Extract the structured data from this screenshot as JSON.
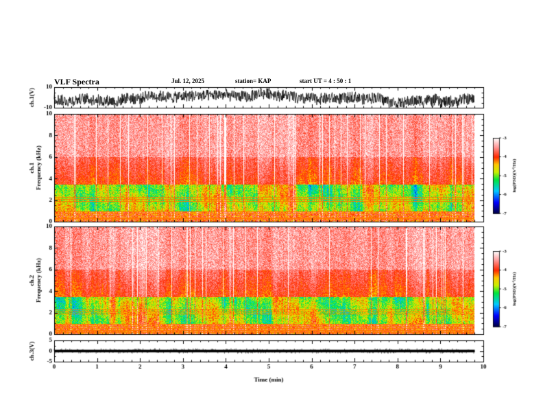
{
  "header": {
    "title": "VLF Spectra",
    "date": "Jul. 12, 2025",
    "station": "station= KAP",
    "start_ut": "start UT =  4 : 50 : 1"
  },
  "chart_data": [
    {
      "type": "line",
      "name": "ch1-waveform",
      "ylabel": "ch.1(V)",
      "ylim": [
        -10,
        10
      ],
      "yticks": [
        "10",
        "-10"
      ],
      "xlim": [
        0,
        10
      ],
      "data_end_min": 9.8,
      "description": "dense noisy time series fluctuating roughly between -8 and 8 V"
    },
    {
      "type": "heatmap",
      "name": "ch1-spectrogram",
      "ylabel": "ch.1\nFrequency (kHz)",
      "ylim": [
        0,
        10
      ],
      "yticks": [
        "0",
        "2",
        "4",
        "6",
        "8",
        "10"
      ],
      "xlim": [
        0,
        10
      ],
      "data_end_min": 9.8,
      "colorbar": {
        "label": "log(PSD)(V²/Hz)",
        "range": [
          -7,
          -3
        ],
        "ticks": [
          "-3",
          "-4",
          "-5",
          "-6",
          "-7"
        ]
      },
      "bands": [
        {
          "from_khz": 0,
          "to_khz": 1,
          "level": "mixed red/white line artifacts"
        },
        {
          "from_khz": 1,
          "to_khz": 3.5,
          "level": "green/yellow (~ -4.5 to -5)"
        },
        {
          "from_khz": 3.5,
          "to_khz": 6,
          "level": "red (~ -4)"
        },
        {
          "from_khz": 6,
          "to_khz": 10,
          "level": "light red/white (~ -3.5)"
        }
      ]
    },
    {
      "type": "heatmap",
      "name": "ch2-spectrogram",
      "ylabel": "ch.2\nFrequency (kHz)",
      "ylim": [
        0,
        10
      ],
      "yticks": [
        "0",
        "2",
        "4",
        "6",
        "8",
        "10"
      ],
      "xlim": [
        0,
        10
      ],
      "data_end_min": 9.8,
      "colorbar": {
        "label": "log(PSD)(V²/Hz)",
        "range": [
          -7,
          -3
        ],
        "ticks": [
          "-3",
          "-4",
          "-5",
          "-6",
          "-7"
        ]
      },
      "bands": [
        {
          "from_khz": 0,
          "to_khz": 1,
          "level": "mixed red/white line artifacts"
        },
        {
          "from_khz": 1,
          "to_khz": 3.5,
          "level": "green/yellow (~ -4.5 to -5)"
        },
        {
          "from_khz": 3.5,
          "to_khz": 6,
          "level": "red (~ -4)"
        },
        {
          "from_khz": 6,
          "to_khz": 10,
          "level": "light red/white (~ -3.5)"
        }
      ]
    },
    {
      "type": "line",
      "name": "ch3-waveform",
      "ylabel": "ch.3(V)",
      "ylim": [
        -5,
        5
      ],
      "yticks": [
        "5",
        "0",
        "-5"
      ],
      "xlim": [
        0,
        10
      ],
      "data_end_min": 9.8,
      "level_v": 0,
      "description": "thick nearly constant band near 0 V"
    }
  ],
  "x_axis": {
    "label": "Time (min)",
    "ticks": [
      "0",
      "1",
      "2",
      "3",
      "4",
      "5",
      "6",
      "7",
      "8",
      "9",
      "10"
    ]
  }
}
